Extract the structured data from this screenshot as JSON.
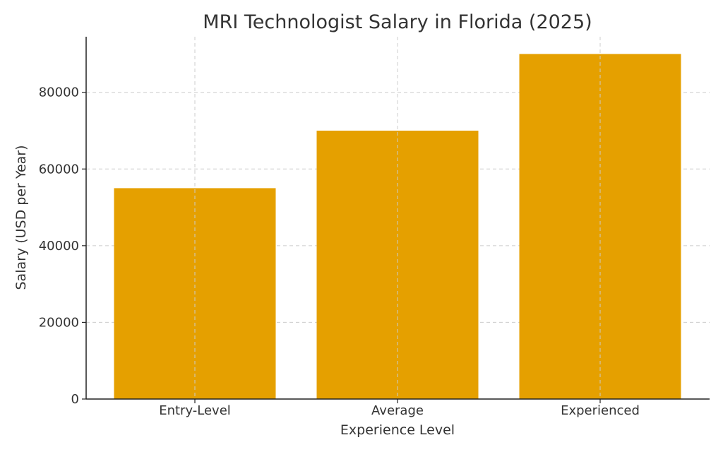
{
  "chart_data": {
    "type": "bar",
    "title": "MRI Technologist Salary in Florida (2025)",
    "xlabel": "Experience Level",
    "ylabel": "Salary (USD per Year)",
    "categories": [
      "Entry-Level",
      "Average",
      "Experienced"
    ],
    "values": [
      55000,
      70000,
      90000
    ],
    "ylim": [
      0,
      94500
    ],
    "yticks": [
      0,
      20000,
      40000,
      60000,
      80000
    ],
    "ytick_labels": [
      "0",
      "20000",
      "40000",
      "60000",
      "80000"
    ],
    "grid": true,
    "bar_color": "#E5A000",
    "grid_color": "#cccccc"
  }
}
